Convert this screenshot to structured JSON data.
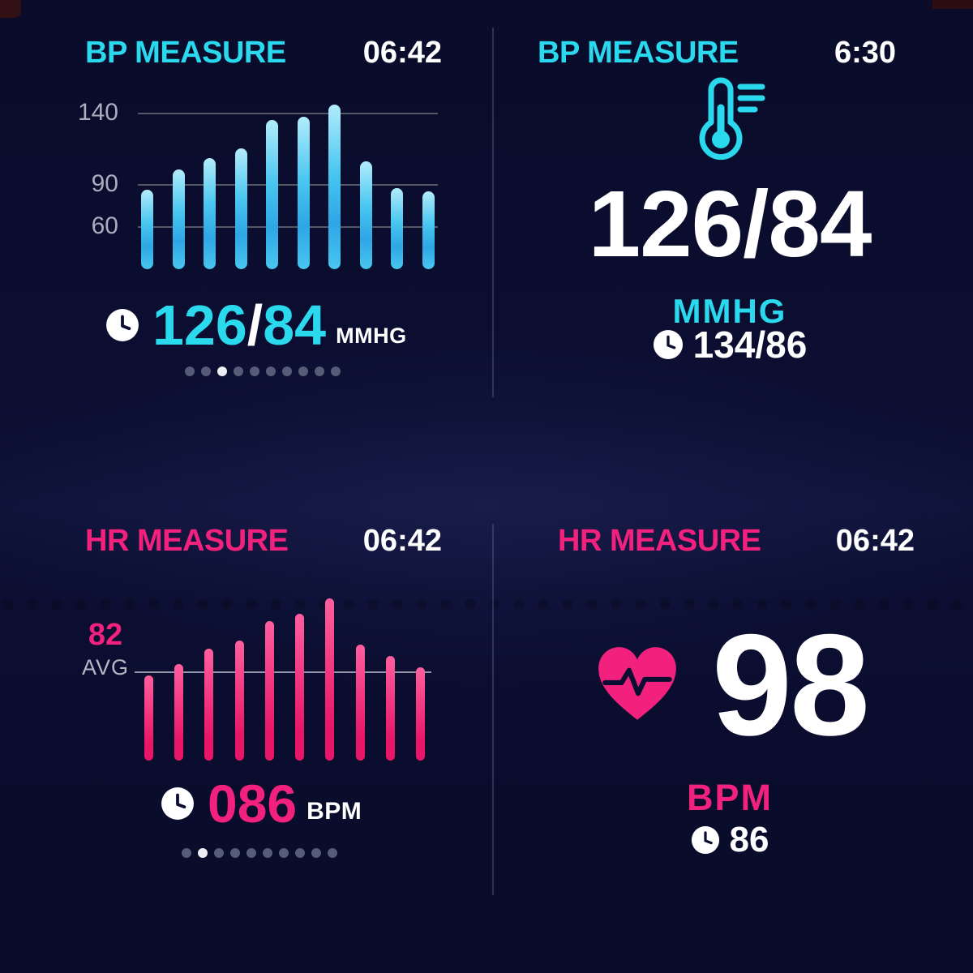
{
  "theme": {
    "bg": "#0a0d2e",
    "cyan": "#2bd9ee",
    "pink": "#f2217e",
    "white": "#ffffff",
    "label_gray": "#a9adbd",
    "grid_gray": "#6e7079",
    "divider": "#4a5180",
    "dot_inactive": "#565b78",
    "dot_active": "#eceef4",
    "bp_bar_top": "#b2ecfb",
    "bp_bar_mid": "#49c6f0",
    "bp_bar_bottom": "#2ea6e5",
    "hr_bar_top": "#ff5f9f",
    "hr_bar_bottom": "#e91568"
  },
  "top_left": {
    "title": "BP MEASURE",
    "time": "06:42",
    "reading": {
      "sys": "126",
      "slash": "/",
      "dia": "84",
      "unit": "MMHG"
    },
    "dots": {
      "count": 10,
      "active": 2
    }
  },
  "top_right": {
    "title": "BP MEASURE",
    "time": "6:30",
    "reading": "126/84",
    "unit": "MMHG",
    "secondary": "134/86"
  },
  "bottom_left": {
    "title": "HR MEASURE",
    "time": "06:42",
    "avg_value": "82",
    "avg_label": "AVG",
    "reading": {
      "value": "086",
      "unit": "BPM"
    },
    "dots": {
      "count": 10,
      "active": 1
    }
  },
  "bottom_right": {
    "title": "HR MEASURE",
    "time": "06:42",
    "reading": "98",
    "unit": "BPM",
    "secondary": "86"
  },
  "chart_data": [
    {
      "type": "bar",
      "title": "BP MEASURE history",
      "ylabel": "mmHg",
      "yticks": [
        140,
        90,
        60
      ],
      "ylim": [
        30,
        152
      ],
      "values": [
        86,
        100,
        108,
        115,
        135,
        137,
        146,
        106,
        87,
        85
      ],
      "grid": true,
      "legend": "none",
      "bar_color": "cyan-gradient"
    },
    {
      "type": "bar",
      "title": "HR MEASURE history",
      "ylabel": "bpm",
      "avg_line": 82,
      "ylim": [
        59,
        103
      ],
      "values": [
        81,
        84,
        88,
        90,
        95,
        97,
        101,
        89,
        86,
        83
      ],
      "grid": false,
      "legend": "none",
      "bar_color": "pink-gradient"
    }
  ]
}
